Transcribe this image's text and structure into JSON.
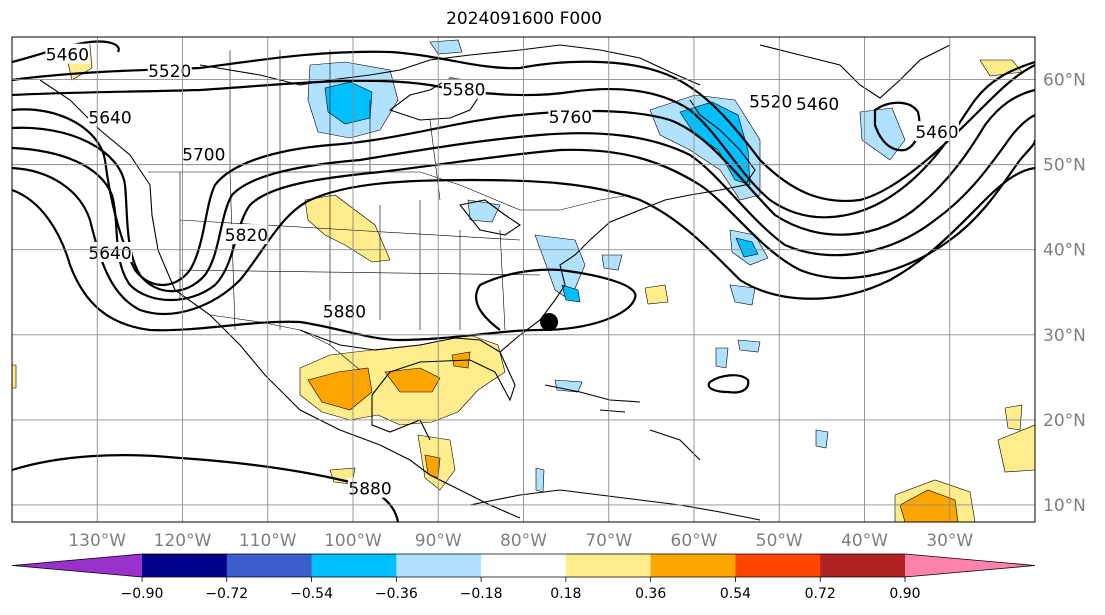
{
  "title": "2024091600 F000",
  "map": {
    "lon_range": [
      -140,
      -20
    ],
    "lat_range": [
      8,
      65
    ],
    "lon_ticks": [
      {
        "value": -130,
        "label": "130°W"
      },
      {
        "value": -120,
        "label": "120°W"
      },
      {
        "value": -110,
        "label": "110°W"
      },
      {
        "value": -100,
        "label": "100°W"
      },
      {
        "value": -90,
        "label": "90°W"
      },
      {
        "value": -80,
        "label": "80°W"
      },
      {
        "value": -70,
        "label": "70°W"
      },
      {
        "value": -60,
        "label": "60°W"
      },
      {
        "value": -50,
        "label": "50°W"
      },
      {
        "value": -40,
        "label": "40°W"
      },
      {
        "value": -30,
        "label": "30°W"
      }
    ],
    "lat_ticks": [
      {
        "value": 60,
        "label": "60°N"
      },
      {
        "value": 50,
        "label": "50°N"
      },
      {
        "value": 40,
        "label": "40°N"
      },
      {
        "value": 30,
        "label": "30°N"
      },
      {
        "value": 20,
        "label": "20°N"
      },
      {
        "value": 10,
        "label": "10°N"
      }
    ],
    "grid": true,
    "marker": {
      "lon": -77,
      "lat": 31.5,
      "color": "#000000"
    },
    "contour_labels": [
      {
        "text": "5460",
        "lon": -133.5,
        "lat": 62.8
      },
      {
        "text": "5520",
        "lon": -121.5,
        "lat": 60.9
      },
      {
        "text": "5580",
        "lon": -87,
        "lat": 58.7
      },
      {
        "text": "5640",
        "lon": -128.5,
        "lat": 55.4
      },
      {
        "text": "5700",
        "lon": -117.5,
        "lat": 51.1
      },
      {
        "text": "5760",
        "lon": -74.5,
        "lat": 55.5
      },
      {
        "text": "5820",
        "lon": -112.5,
        "lat": 41.6
      },
      {
        "text": "5640",
        "lon": -128.5,
        "lat": 39.5
      },
      {
        "text": "5880",
        "lon": -101,
        "lat": 32.6
      },
      {
        "text": "5880",
        "lon": -98,
        "lat": 11.8
      },
      {
        "text": "5520",
        "lon": -51,
        "lat": 57.3
      },
      {
        "text": "5460",
        "lon": -45.5,
        "lat": 57.0
      },
      {
        "text": "5460",
        "lon": -31.5,
        "lat": 53.7
      }
    ]
  },
  "colorbar": {
    "levels": [
      "−0.90",
      "−0.72",
      "−0.54",
      "−0.36",
      "−0.18",
      "0.18",
      "0.36",
      "0.54",
      "0.72",
      "0.90"
    ],
    "colors": [
      "#9932cc",
      "#00008b",
      "#3a5fcd",
      "#00bfff",
      "#b0e2ff",
      "#ffffff",
      "#ffec8b",
      "#ffa500",
      "#ff4500",
      "#b22222",
      "#ff82ab"
    ]
  }
}
